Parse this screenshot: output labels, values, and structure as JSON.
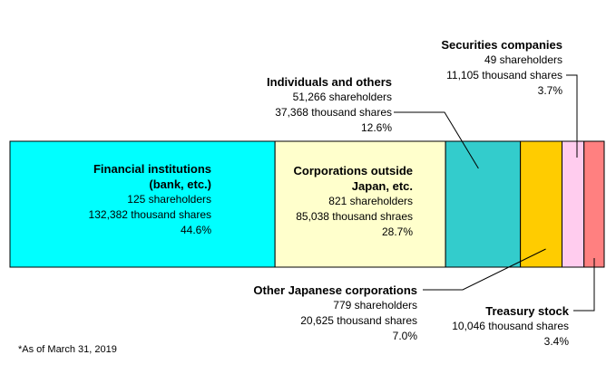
{
  "chart_data": {
    "type": "bar",
    "orientation": "horizontal-stacked-100",
    "series": [
      {
        "name": "Financial institutions (bank, etc.)",
        "name_lines": [
          "Financial institutions",
          "(bank, etc.)"
        ],
        "shareholders": "125 shareholders",
        "shares_text": "132,382 thousand shares",
        "percent_text": "44.6%",
        "value": 44.6,
        "color": "#00FFFF"
      },
      {
        "name": "Corporations outside Japan, etc.",
        "name_lines": [
          "Corporations outside",
          "Japan, etc."
        ],
        "shareholders": "821 shareholders",
        "shares_text": "85,038 thousand shraes",
        "percent_text": "28.7%",
        "value": 28.7,
        "color": "#FFFFCC"
      },
      {
        "name": "Individuals and others",
        "name_lines": [
          "Individuals and others"
        ],
        "shareholders": "51,266 shareholders",
        "shares_text": "37,368 thousand shares",
        "percent_text": "12.6%",
        "value": 12.6,
        "color": "#33CCCC"
      },
      {
        "name": "Other Japanese corporations",
        "name_lines": [
          "Other Japanese corporations"
        ],
        "shareholders": "779 shareholders",
        "shares_text": "20,625 thousand shares",
        "percent_text": "7.0%",
        "value": 7.0,
        "color": "#FFCC00"
      },
      {
        "name": "Securities companies",
        "name_lines": [
          "Securities companies"
        ],
        "shareholders": "49 shareholders",
        "shares_text": "11,105 thousand shares",
        "percent_text": "3.7%",
        "value": 3.7,
        "color": "#FFCCEE"
      },
      {
        "name": "Treasury stock",
        "name_lines": [
          "Treasury stock"
        ],
        "shareholders": "",
        "shares_text": "10,046 thousand shares",
        "percent_text": "3.4%",
        "value": 3.4,
        "color": "#FF8080"
      }
    ],
    "xlim": [
      0,
      100
    ],
    "grid": false,
    "legend": "none"
  },
  "note": "*As of March 31, 2019"
}
